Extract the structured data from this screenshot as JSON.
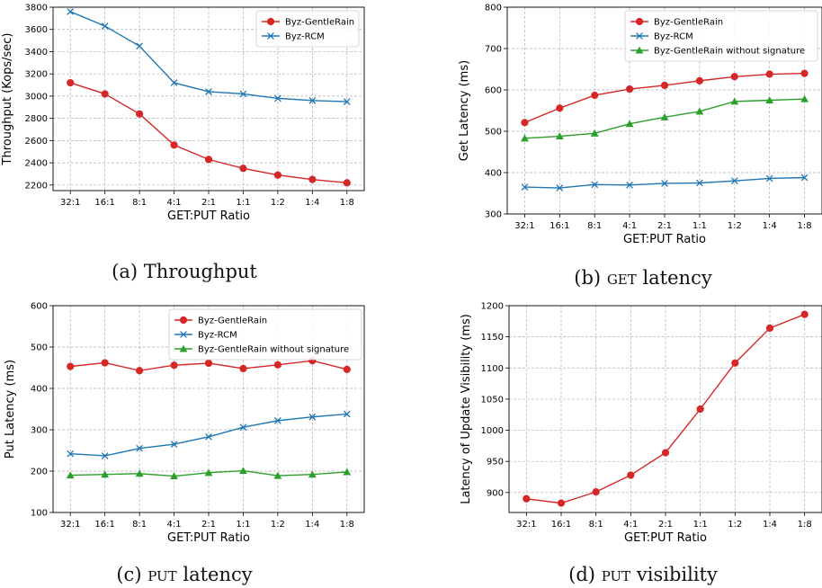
{
  "colors": {
    "red": "#d62728",
    "blue": "#1f77b4",
    "green": "#2ca02c",
    "grid": "#b0b0b0"
  },
  "categories": [
    "32:1",
    "16:1",
    "8:1",
    "4:1",
    "2:1",
    "1:1",
    "1:2",
    "1:4",
    "1:8"
  ],
  "chart_data": [
    {
      "id": "a",
      "type": "line",
      "xlabel": "GET:PUT Ratio",
      "ylabel": "Throughput (Kops/sec)",
      "ylim": [
        2150,
        3800
      ],
      "yticks": [
        2200,
        2400,
        2600,
        2800,
        3000,
        3200,
        3400,
        3600,
        3800
      ],
      "grid": true,
      "legend": "top-right",
      "series": [
        {
          "name": "Byz-GentleRain",
          "color": "red",
          "marker": "circle",
          "values": [
            3120,
            3020,
            2840,
            2560,
            2430,
            2350,
            2290,
            2250,
            2220
          ]
        },
        {
          "name": "Byz-RCM",
          "color": "blue",
          "marker": "x",
          "values": [
            3760,
            3630,
            3450,
            3120,
            3040,
            3020,
            2980,
            2960,
            2950
          ]
        }
      ]
    },
    {
      "id": "b",
      "type": "line",
      "xlabel": "GET:PUT Ratio",
      "ylabel": "Get Latency (ms)",
      "ylim": [
        300,
        800
      ],
      "yticks": [
        300,
        400,
        500,
        600,
        700,
        800
      ],
      "grid": true,
      "legend": "top-right",
      "series": [
        {
          "name": "Byz-GentleRain",
          "color": "red",
          "marker": "circle",
          "values": [
            521,
            556,
            587,
            602,
            611,
            622,
            632,
            638,
            640
          ]
        },
        {
          "name": "Byz-RCM",
          "color": "blue",
          "marker": "x",
          "values": [
            365,
            363,
            371,
            370,
            374,
            375,
            380,
            386,
            388
          ]
        },
        {
          "name": "Byz-GentleRain without signature",
          "color": "green",
          "marker": "triangle",
          "values": [
            483,
            488,
            495,
            518,
            534,
            548,
            572,
            575,
            578
          ]
        }
      ]
    },
    {
      "id": "c",
      "type": "line",
      "xlabel": "GET:PUT Ratio",
      "ylabel": "Put Latency (ms)",
      "ylim": [
        100,
        600
      ],
      "yticks": [
        100,
        200,
        300,
        400,
        500,
        600
      ],
      "grid": true,
      "legend": "top-right",
      "series": [
        {
          "name": "Byz-GentleRain",
          "color": "red",
          "marker": "circle",
          "values": [
            453,
            462,
            443,
            456,
            461,
            448,
            457,
            467,
            446
          ]
        },
        {
          "name": "Byz-RCM",
          "color": "blue",
          "marker": "x",
          "values": [
            242,
            237,
            255,
            265,
            283,
            306,
            322,
            331,
            338
          ]
        },
        {
          "name": "Byz-GentleRain without signature",
          "color": "green",
          "marker": "triangle",
          "values": [
            190,
            192,
            194,
            188,
            196,
            201,
            189,
            192,
            198
          ]
        }
      ]
    },
    {
      "id": "d",
      "type": "line",
      "xlabel": "GET:PUT Ratio",
      "ylabel": "Latency of Update Visibility (ms)",
      "ylim": [
        868,
        1200
      ],
      "yticks": [
        900,
        950,
        1000,
        1050,
        1100,
        1150,
        1200
      ],
      "grid": true,
      "legend": "none",
      "series": [
        {
          "name": "",
          "color": "red",
          "marker": "circle",
          "values": [
            890,
            883,
            901,
            928,
            964,
            1034,
            1108,
            1164,
            1186
          ]
        }
      ]
    }
  ],
  "captions": [
    {
      "label": "(a)",
      "text": "Throughput",
      "sc": ""
    },
    {
      "label": "(b)",
      "text": "latency",
      "sc": "get"
    },
    {
      "label": "(c)",
      "text": "latency",
      "sc": "put"
    },
    {
      "label": "(d)",
      "text": "visibility",
      "sc": "put"
    }
  ]
}
